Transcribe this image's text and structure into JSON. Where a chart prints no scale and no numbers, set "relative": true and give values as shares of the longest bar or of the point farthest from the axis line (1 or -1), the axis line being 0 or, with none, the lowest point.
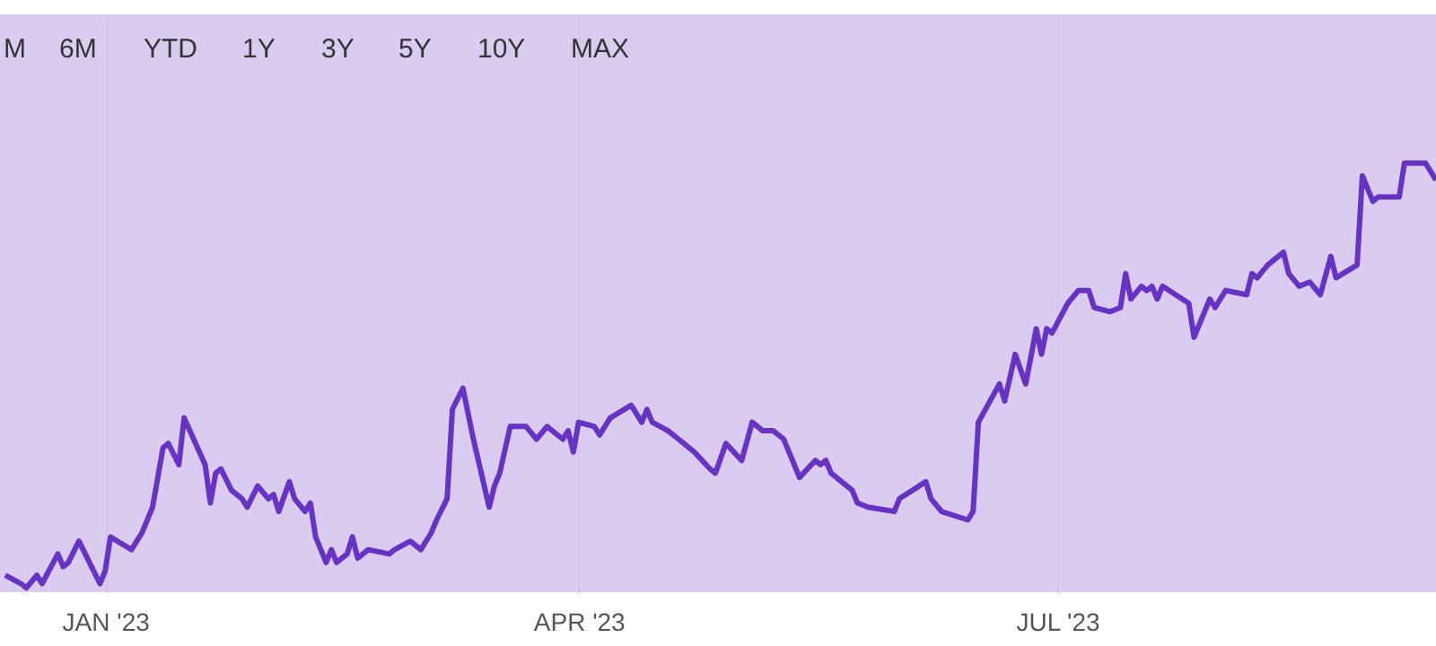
{
  "chart_data": {
    "type": "line",
    "relative": true,
    "grid": "x",
    "annotations": [
      "M",
      "6M",
      "YTD",
      "1Y",
      "3Y",
      "5Y",
      "10Y",
      "MAX"
    ],
    "xlim": [
      "2022-12-12",
      "2023-09-11"
    ],
    "xticks": [
      {
        "value": "2023-01-01",
        "label": "JAN '23"
      },
      {
        "value": "2023-04-01",
        "label": "APR '23"
      },
      {
        "value": "2023-07-01",
        "label": "JUL '23"
      }
    ],
    "x": [
      "2022-12-13",
      "2022-12-16",
      "2022-12-17",
      "2022-12-19",
      "2022-12-20",
      "2022-12-23",
      "2022-12-24",
      "2022-12-25",
      "2022-12-27",
      "2022-12-31",
      "2023-01-01",
      "2023-01-02",
      "2023-01-06",
      "2023-01-07",
      "2023-01-08",
      "2023-01-10",
      "2023-01-12",
      "2023-01-13",
      "2023-01-15",
      "2023-01-16",
      "2023-01-20",
      "2023-01-21",
      "2023-01-22",
      "2023-01-23",
      "2023-01-25",
      "2023-01-27",
      "2023-01-28",
      "2023-01-30",
      "2023-02-01",
      "2023-02-02",
      "2023-02-03",
      "2023-02-05",
      "2023-02-06",
      "2023-02-08",
      "2023-02-09",
      "2023-02-10",
      "2023-02-12",
      "2023-02-13",
      "2023-02-14",
      "2023-02-16",
      "2023-02-17",
      "2023-02-18",
      "2023-02-20",
      "2023-02-24",
      "2023-02-25",
      "2023-02-28",
      "2023-03-01",
      "2023-03-02",
      "2023-03-04",
      "2023-03-05",
      "2023-03-07",
      "2023-03-08",
      "2023-03-10",
      "2023-03-12",
      "2023-03-15",
      "2023-03-16",
      "2023-03-17",
      "2023-03-19",
      "2023-03-22",
      "2023-03-24",
      "2023-03-26",
      "2023-03-29",
      "2023-03-30",
      "2023-03-31",
      "2023-04-01",
      "2023-04-04",
      "2023-04-05",
      "2023-04-07",
      "2023-04-11",
      "2023-04-13",
      "2023-04-14",
      "2023-04-15",
      "2023-04-18",
      "2023-04-20",
      "2023-04-23",
      "2023-04-26",
      "2023-04-27",
      "2023-04-29",
      "2023-05-02",
      "2023-05-04",
      "2023-05-06",
      "2023-05-08",
      "2023-05-10",
      "2023-05-13",
      "2023-05-16",
      "2023-05-17",
      "2023-05-18",
      "2023-05-19",
      "2023-05-23",
      "2023-05-24",
      "2023-05-26",
      "2023-05-31",
      "2023-06-01",
      "2023-06-06",
      "2023-06-07",
      "2023-06-09",
      "2023-06-14",
      "2023-06-15",
      "2023-06-16",
      "2023-06-20",
      "2023-06-21",
      "2023-06-23",
      "2023-06-25",
      "2023-06-27",
      "2023-06-28",
      "2023-06-29",
      "2023-06-30",
      "2023-07-03",
      "2023-07-05",
      "2023-07-07",
      "2023-07-08",
      "2023-07-11",
      "2023-07-13",
      "2023-07-14",
      "2023-07-15",
      "2023-07-17",
      "2023-07-18",
      "2023-07-19",
      "2023-07-20",
      "2023-07-21",
      "2023-07-26",
      "2023-07-27",
      "2023-07-30",
      "2023-07-31",
      "2023-08-02",
      "2023-08-06",
      "2023-08-07",
      "2023-08-08",
      "2023-08-10",
      "2023-08-13",
      "2023-08-14",
      "2023-08-16",
      "2023-08-18",
      "2023-08-20",
      "2023-08-22",
      "2023-08-23",
      "2023-08-27",
      "2023-08-28",
      "2023-08-30",
      "2023-08-31",
      "2023-09-04",
      "2023-09-05",
      "2023-09-09",
      "2023-09-11"
    ],
    "series": [
      {
        "color": "#6633c4",
        "values": [
          0.03,
          0.01,
          0,
          0.03,
          0.01,
          0.08,
          0.05,
          0.06,
          0.11,
          0.01,
          0.04,
          0.12,
          0.09,
          0.11,
          0.13,
          0.19,
          0.33,
          0.34,
          0.29,
          0.4,
          0.29,
          0.2,
          0.27,
          0.28,
          0.23,
          0.21,
          0.19,
          0.24,
          0.21,
          0.22,
          0.18,
          0.25,
          0.21,
          0.18,
          0.2,
          0.12,
          0.06,
          0.09,
          0.06,
          0.08,
          0.12,
          0.07,
          0.09,
          0.08,
          0.09,
          0.11,
          0.1,
          0.09,
          0.13,
          0.16,
          0.21,
          0.42,
          0.47,
          0.35,
          0.19,
          0.24,
          0.27,
          0.38,
          0.38,
          0.35,
          0.38,
          0.35,
          0.37,
          0.32,
          0.39,
          0.38,
          0.36,
          0.4,
          0.43,
          0.39,
          0.42,
          0.39,
          0.37,
          0.35,
          0.32,
          0.28,
          0.27,
          0.34,
          0.3,
          0.39,
          0.37,
          0.37,
          0.35,
          0.26,
          0.3,
          0.29,
          0.3,
          0.27,
          0.23,
          0.2,
          0.19,
          0.18,
          0.21,
          0.25,
          0.21,
          0.18,
          0.16,
          0.18,
          0.39,
          0.48,
          0.44,
          0.55,
          0.48,
          0.61,
          0.55,
          0.61,
          0.6,
          0.67,
          0.7,
          0.7,
          0.66,
          0.65,
          0.66,
          0.74,
          0.68,
          0.71,
          0.7,
          0.71,
          0.68,
          0.71,
          0.67,
          0.59,
          0.68,
          0.66,
          0.7,
          0.69,
          0.74,
          0.73,
          0.76,
          0.79,
          0.74,
          0.71,
          0.72,
          0.69,
          0.78,
          0.73,
          0.76,
          0.97,
          0.91,
          0.92,
          0.92,
          1,
          1,
          0.96
        ]
      }
    ]
  }
}
